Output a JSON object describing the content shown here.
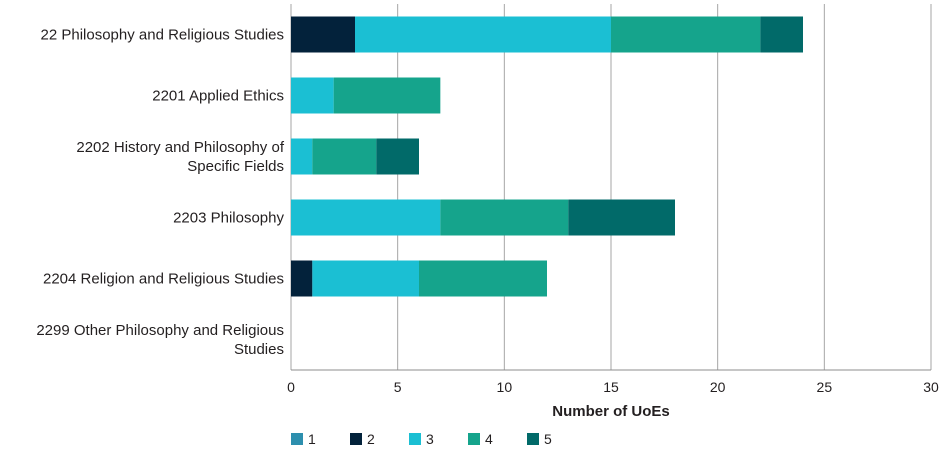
{
  "chart_data": {
    "type": "bar",
    "orientation": "horizontal",
    "stacked": true,
    "title": "",
    "xlabel": "Number of UoEs",
    "ylabel": "",
    "xlim": [
      0,
      30
    ],
    "xticks": [
      "0",
      "5",
      "10",
      "15",
      "20",
      "25",
      "30"
    ],
    "grid": true,
    "legend_position": "bottom-left",
    "categories": [
      [
        "22 Philosophy and Religious Studies"
      ],
      [
        "2201 Applied Ethics"
      ],
      [
        "2202 History and Philosophy of",
        "Specific Fields"
      ],
      [
        "2203 Philosophy"
      ],
      [
        "2204 Religion and Religious Studies"
      ],
      [
        "2299 Other Philosophy and Religious",
        "Studies"
      ]
    ],
    "series": [
      {
        "name": "1",
        "color": "#2d8fae",
        "values": [
          0,
          0,
          0,
          0,
          0,
          0
        ]
      },
      {
        "name": "2",
        "color": "#03223b",
        "values": [
          3,
          0,
          0,
          0,
          1,
          0
        ]
      },
      {
        "name": "3",
        "color": "#1bbfd3",
        "values": [
          12,
          2,
          1,
          7,
          5,
          0
        ]
      },
      {
        "name": "4",
        "color": "#15a48c",
        "values": [
          7,
          5,
          3,
          6,
          6,
          0
        ]
      },
      {
        "name": "5",
        "color": "#016a69",
        "values": [
          2,
          0,
          2,
          5,
          0,
          0
        ]
      }
    ]
  }
}
